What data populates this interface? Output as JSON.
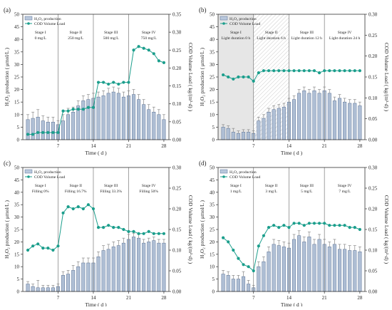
{
  "colors": {
    "bar_fill": "#b9c8dc",
    "bar_stroke": "#5b7398",
    "cod_line": "#1b9e8c",
    "stage_line": "#7a7a7a",
    "hatch": "#9a9a9a",
    "shade": "#e6e6e6"
  },
  "chart_data": [
    {
      "type": "bar",
      "panel_label": "(a)",
      "legend": {
        "bar": "H₂O₂ production",
        "line": "COD Volume Load"
      },
      "xlabel": "Time ( d )",
      "ylabel_left": "H₂O₂ production ( μmol/L )",
      "ylabel_right": "COD Volume Load ( kg/(m³·d) )",
      "xlim": [
        0,
        29
      ],
      "xticks": [
        7,
        14,
        21,
        28
      ],
      "ylim_left": [
        0,
        50
      ],
      "yticks_left": [
        0,
        5,
        10,
        15,
        20,
        25,
        30,
        35,
        40,
        45,
        50
      ],
      "ylim_right": [
        0,
        0.35
      ],
      "yticks_right": [
        "0.00",
        "0.05",
        "0.10",
        "0.15",
        "0.20",
        "0.25",
        "0.30",
        "0.35"
      ],
      "stage_boundaries": [
        7,
        14,
        21
      ],
      "stages": [
        {
          "lines": [
            "Stage I",
            "0 mg/L"
          ]
        },
        {
          "lines": [
            "Stage II",
            "250 mg/L"
          ]
        },
        {
          "lines": [
            "Stage III",
            "500 mg/L"
          ]
        },
        {
          "lines": [
            "Stage IV",
            "750 mg/L"
          ]
        }
      ],
      "stage_shading": "none",
      "x": [
        1,
        2,
        3,
        4,
        5,
        6,
        7,
        8,
        9,
        10,
        11,
        12,
        13,
        14,
        15,
        16,
        17,
        18,
        19,
        20,
        21,
        22,
        23,
        24,
        25,
        26,
        27,
        28
      ],
      "bars": [
        8,
        8.5,
        9,
        7.5,
        7,
        7,
        6,
        7.5,
        10,
        11,
        13.5,
        15.5,
        16,
        16.5,
        17,
        17.5,
        18.5,
        19,
        18.5,
        17,
        17.5,
        18,
        16,
        14,
        12,
        11,
        10,
        8
      ],
      "errors": [
        2,
        2.5,
        3,
        2,
        2,
        2,
        1.5,
        2.5,
        2.5,
        2,
        2,
        2,
        2,
        2,
        2,
        2,
        2,
        2,
        2,
        2,
        2,
        2,
        2,
        2,
        2,
        2,
        2,
        2
      ],
      "line": [
        0.015,
        0.015,
        0.02,
        0.02,
        0.02,
        0.02,
        0.02,
        0.08,
        0.08,
        0.085,
        0.085,
        0.085,
        0.09,
        0.09,
        0.16,
        0.16,
        0.155,
        0.16,
        0.155,
        0.16,
        0.16,
        0.25,
        0.26,
        0.255,
        0.25,
        0.24,
        0.22,
        0.215
      ]
    },
    {
      "type": "bar",
      "panel_label": "(b)",
      "legend": {
        "bar": "H₂O₂ production",
        "line": "COD Volume Load"
      },
      "xlabel": "Time ( d )",
      "ylabel_left": "H₂O₂ production ( μmol/L )",
      "ylabel_right": "COD Volume Load ( kg/(m³·d) )",
      "xlim": [
        0,
        29
      ],
      "xticks": [
        7,
        14,
        21,
        28
      ],
      "ylim_left": [
        0,
        50
      ],
      "yticks_left": [
        0,
        5,
        10,
        15,
        20,
        25,
        30,
        35,
        40,
        45,
        50
      ],
      "ylim_right": [
        0,
        0.3
      ],
      "yticks_right": [
        "0.00",
        "0.05",
        "0.10",
        "0.15",
        "0.20",
        "0.25",
        "0.30"
      ],
      "stage_boundaries": [
        7,
        14,
        21
      ],
      "stages": [
        {
          "lines": [
            "Stage I",
            "Light duration 0 h"
          ]
        },
        {
          "lines": [
            "Stage II",
            "Light duration 6 h"
          ]
        },
        {
          "lines": [
            "Stage III",
            "Light duration 12 h"
          ]
        },
        {
          "lines": [
            "Stage IV",
            "Light duration 24 h"
          ]
        }
      ],
      "stage_shading": "b",
      "x": [
        1,
        2,
        3,
        4,
        5,
        6,
        7,
        8,
        9,
        10,
        11,
        12,
        13,
        14,
        15,
        16,
        17,
        18,
        19,
        20,
        21,
        22,
        23,
        24,
        25,
        26,
        27,
        28
      ],
      "bars": [
        5,
        4.5,
        3,
        2.5,
        3,
        3,
        2.5,
        7.5,
        8.5,
        11,
        12,
        12.5,
        13,
        15,
        16,
        18.5,
        19.5,
        18.5,
        19.5,
        18.5,
        19.5,
        18.5,
        15.5,
        16.5,
        15,
        14.5,
        14.5,
        13.5
      ],
      "errors": [
        1,
        1,
        1.5,
        1,
        1,
        1,
        1,
        1.5,
        1.5,
        1.5,
        1.5,
        1.5,
        1.5,
        1.5,
        1.5,
        1.5,
        1.5,
        1.5,
        1.5,
        1.5,
        1.5,
        1.5,
        1.5,
        1.5,
        1.5,
        1.5,
        1.5,
        1.5
      ],
      "line": [
        0.155,
        0.15,
        0.145,
        0.15,
        0.15,
        0.15,
        0.14,
        0.16,
        0.165,
        0.165,
        0.165,
        0.165,
        0.165,
        0.165,
        0.165,
        0.165,
        0.165,
        0.165,
        0.165,
        0.16,
        0.165,
        0.165,
        0.165,
        0.165,
        0.165,
        0.165,
        0.165,
        0.165
      ]
    },
    {
      "type": "bar",
      "panel_label": "(c)",
      "legend": {
        "bar": "H₂O₂ production",
        "line": "COD Volume Load"
      },
      "xlabel": "Time ( d )",
      "ylabel_left": "H₂O₂ production ( μmol/L )",
      "ylabel_right": "COD Volume Load ( kg/(m³·d) )",
      "xlim": [
        0,
        29
      ],
      "xticks": [
        7,
        14,
        21,
        28
      ],
      "ylim_left": [
        0,
        50
      ],
      "yticks_left": [
        0,
        5,
        10,
        15,
        20,
        25,
        30,
        35,
        40,
        45,
        50
      ],
      "ylim_right": [
        0,
        0.3
      ],
      "yticks_right": [
        "0.00",
        "0.05",
        "0.10",
        "0.15",
        "0.20",
        "0.25",
        "0.30"
      ],
      "stage_boundaries": [
        7,
        14,
        21
      ],
      "stages": [
        {
          "lines": [
            "Stage I",
            "Filling 0%"
          ]
        },
        {
          "lines": [
            "Stage II",
            "Filling 16.7%"
          ]
        },
        {
          "lines": [
            "Stage III",
            "Filling 33.3%"
          ]
        },
        {
          "lines": [
            "Stage IV",
            "Filling 50%"
          ]
        }
      ],
      "stage_shading": "none",
      "x": [
        1,
        2,
        3,
        4,
        5,
        6,
        7,
        8,
        9,
        10,
        11,
        12,
        13,
        14,
        15,
        16,
        17,
        18,
        19,
        20,
        21,
        22,
        23,
        24,
        25,
        26,
        27,
        28
      ],
      "bars": [
        3,
        2,
        1.5,
        1.5,
        1.5,
        1.5,
        2,
        6.5,
        7,
        8.5,
        10,
        11.5,
        11.5,
        11.5,
        14,
        16.5,
        17,
        18,
        18.5,
        19.5,
        21,
        22,
        21.5,
        19.5,
        20,
        20.5,
        19.5,
        19.5
      ],
      "errors": [
        1,
        1,
        3,
        1,
        1,
        1,
        1,
        1.5,
        1.5,
        2,
        2,
        2,
        2,
        2,
        2,
        2,
        2,
        2,
        2,
        2,
        2,
        1.5,
        1.5,
        1.5,
        1.5,
        1.5,
        1.5,
        1.5
      ],
      "line": [
        0.1,
        0.11,
        0.115,
        0.105,
        0.105,
        0.1,
        0.11,
        0.19,
        0.205,
        0.2,
        0.205,
        0.2,
        0.21,
        0.2,
        0.155,
        0.155,
        0.16,
        0.155,
        0.155,
        0.15,
        0.145,
        0.145,
        0.14,
        0.14,
        0.145,
        0.14,
        0.14,
        0.14
      ]
    },
    {
      "type": "bar",
      "panel_label": "(d)",
      "legend": {
        "bar": "H₂O₂ production",
        "line": "COD Volume Load"
      },
      "xlabel": "Time ( d )",
      "ylabel_left": "H₂O₂ production ( μmol/L )",
      "ylabel_right": "COD Volume Load ( kg/(m³·d) )",
      "xlim": [
        0,
        29
      ],
      "xticks": [
        7,
        14,
        21,
        28
      ],
      "ylim_left": [
        0,
        50
      ],
      "yticks_left": [
        0,
        5,
        10,
        15,
        20,
        25,
        30,
        35,
        40,
        45,
        50
      ],
      "ylim_right": [
        0,
        0.3
      ],
      "yticks_right": [
        "0.00",
        "0.05",
        "0.10",
        "0.15",
        "0.20",
        "0.25",
        "0.30"
      ],
      "stage_boundaries": [
        7,
        14,
        21
      ],
      "stages": [
        {
          "lines": [
            "Stage I",
            "1 mg/L"
          ]
        },
        {
          "lines": [
            "Stage II",
            "3 mg/L"
          ]
        },
        {
          "lines": [
            "Stage III",
            "5 mg/L"
          ]
        },
        {
          "lines": [
            "Stage IV",
            "7 mg/L"
          ]
        }
      ],
      "stage_shading": "none",
      "x": [
        1,
        2,
        3,
        4,
        5,
        6,
        7,
        8,
        9,
        10,
        11,
        12,
        13,
        14,
        15,
        16,
        17,
        18,
        19,
        20,
        21,
        22,
        23,
        24,
        25,
        26,
        27,
        28
      ],
      "bars": [
        7,
        6.5,
        5,
        5,
        6,
        3,
        1.5,
        10,
        12,
        16,
        19,
        18.5,
        18,
        17.5,
        21,
        22.5,
        20,
        22,
        19,
        21,
        19,
        18,
        19,
        17,
        17,
        16.5,
        16.5,
        16
      ],
      "errors": [
        1.5,
        1.5,
        1.5,
        1.5,
        2,
        1.5,
        1,
        2,
        2,
        2,
        2,
        2,
        2,
        2,
        2,
        2,
        2,
        2,
        2,
        2,
        2,
        2,
        2,
        2,
        2,
        2,
        2,
        2
      ],
      "line": [
        0.13,
        0.12,
        0.1,
        0.08,
        0.065,
        0.06,
        0.05,
        0.11,
        0.135,
        0.155,
        0.16,
        0.155,
        0.16,
        0.155,
        0.165,
        0.165,
        0.16,
        0.165,
        0.165,
        0.165,
        0.165,
        0.16,
        0.16,
        0.16,
        0.16,
        0.155,
        0.155,
        0.15
      ]
    }
  ]
}
